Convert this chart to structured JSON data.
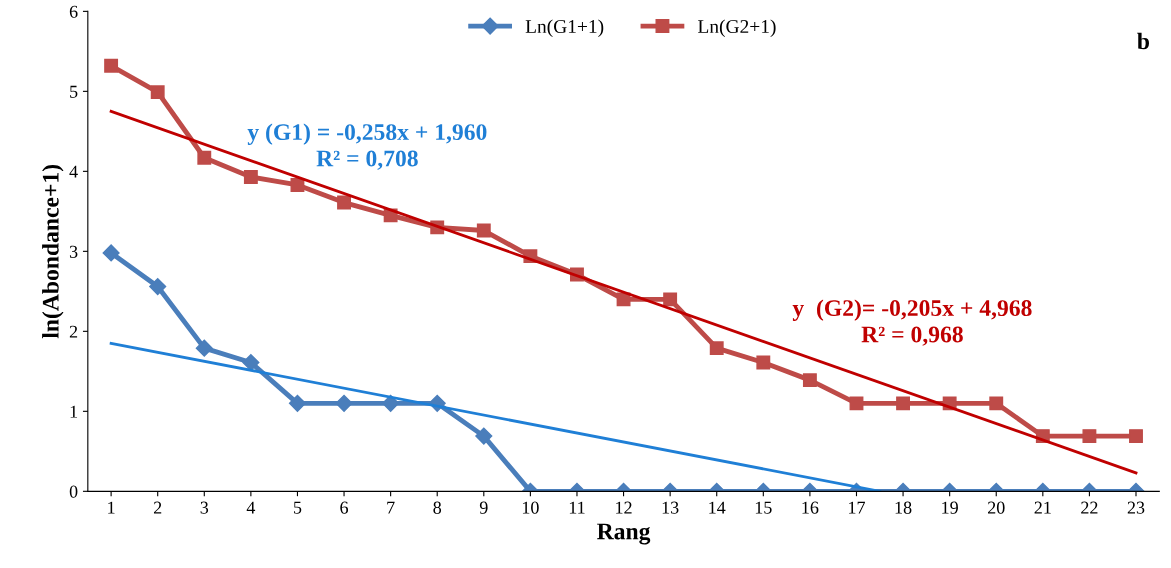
{
  "chart_data": {
    "type": "line",
    "xlabel": "Rang",
    "ylabel": "ln(Abondance+1)",
    "x": [
      1,
      2,
      3,
      4,
      5,
      6,
      7,
      8,
      9,
      10,
      11,
      12,
      13,
      14,
      15,
      16,
      17,
      18,
      19,
      20,
      21,
      22,
      23
    ],
    "xlim": [
      0.5,
      23.5
    ],
    "xticks": [
      1,
      2,
      3,
      4,
      5,
      6,
      7,
      8,
      9,
      10,
      11,
      12,
      13,
      14,
      15,
      16,
      17,
      18,
      19,
      20,
      21,
      22,
      23
    ],
    "ylim": [
      0,
      6
    ],
    "yticks": [
      0,
      1,
      2,
      3,
      4,
      5,
      6
    ],
    "grid": false,
    "legend": "top",
    "series": [
      {
        "name": "Ln(G1+1)",
        "color": "#4a7ebb",
        "marker": "diamond",
        "values": [
          2.98,
          2.56,
          1.79,
          1.61,
          1.1,
          1.1,
          1.1,
          1.1,
          0.69,
          0,
          0,
          0,
          0,
          0,
          0,
          0,
          0,
          0,
          0,
          0,
          0,
          0,
          0
        ]
      },
      {
        "name": "Ln(G2+1)",
        "color": "#be4b48",
        "marker": "square",
        "values": [
          5.32,
          4.99,
          4.17,
          3.93,
          3.83,
          3.61,
          3.45,
          3.3,
          3.26,
          2.94,
          2.71,
          2.4,
          2.4,
          1.79,
          1.61,
          1.39,
          1.1,
          1.1,
          1.1,
          1.1,
          0.69,
          0.69,
          0.69
        ]
      },
      {
        "color": "#1f7fd6",
        "marker": "none",
        "x": [
          1,
          17.5
        ],
        "values": [
          1.85,
          0
        ]
      },
      {
        "color": "#c00000",
        "marker": "none",
        "x": [
          1,
          23
        ],
        "values": [
          4.75,
          0.23
        ]
      }
    ],
    "annotations": [
      "y (G1) = -0,258x + 1,960\nR² = 0,708",
      "y  (G2)= -0,205x + 4,968\nR² = 0,968",
      "b"
    ]
  }
}
